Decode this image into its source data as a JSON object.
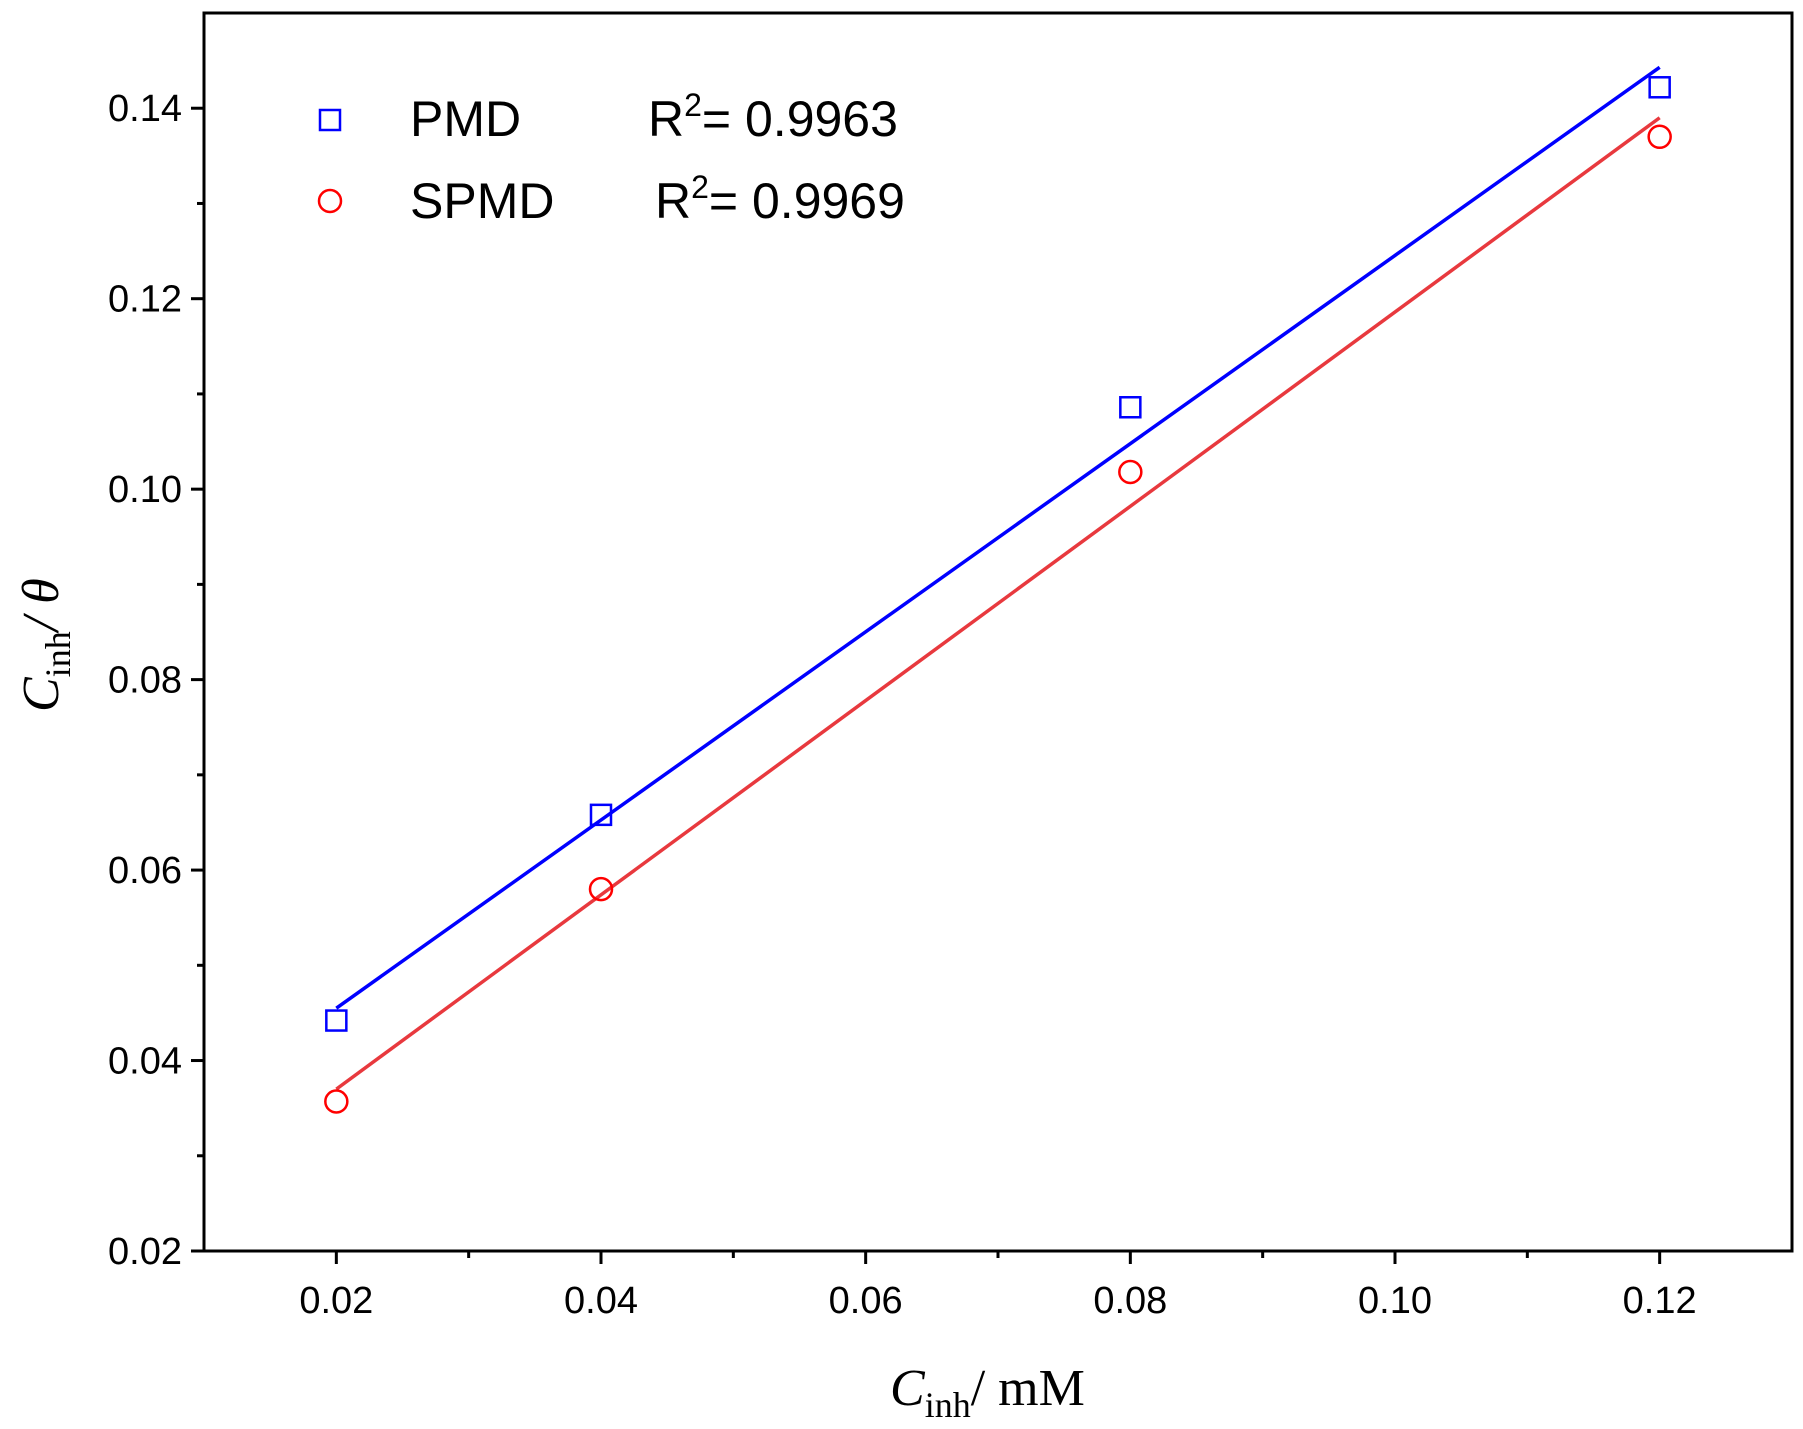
{
  "chart_data": {
    "type": "scatter",
    "xlabel": {
      "main": "C",
      "sub": "inh",
      "rest": "/ mM"
    },
    "ylabel": {
      "main": "C",
      "sub": "inh",
      "rest": "/ θ"
    },
    "xlim": [
      0.01,
      0.13
    ],
    "ylim": [
      0.02,
      0.15
    ],
    "x_ticks": [
      0.02,
      0.04,
      0.06,
      0.08,
      0.1,
      0.12
    ],
    "x_tick_labels": [
      "0.02",
      "0.04",
      "0.06",
      "0.08",
      "0.10",
      "0.12"
    ],
    "y_ticks": [
      0.02,
      0.04,
      0.06,
      0.08,
      0.1,
      0.12,
      0.14
    ],
    "y_tick_labels": [
      "0.02",
      "0.04",
      "0.06",
      "0.08",
      "0.10",
      "0.12",
      "0.14"
    ],
    "legend_position": "top-left",
    "series": [
      {
        "name": "PMD",
        "r2_prefix": "R",
        "r2_exp": "2",
        "r2_value": "= 0.9963",
        "marker": "square",
        "color": "#0000ff",
        "x": [
          0.02,
          0.04,
          0.08,
          0.12
        ],
        "y": [
          0.0442,
          0.0658,
          0.1086,
          0.1422
        ],
        "fit": {
          "x": [
            0.02,
            0.12
          ],
          "y": [
            0.0455,
            0.1443
          ]
        }
      },
      {
        "name": "SPMD",
        "r2_prefix": "R",
        "r2_exp": "2",
        "r2_value": "= 0.9969",
        "marker": "circle",
        "color": "#ff0000",
        "fit_color": "#e8393e",
        "x": [
          0.02,
          0.04,
          0.08,
          0.12
        ],
        "y": [
          0.0357,
          0.058,
          0.1018,
          0.137
        ],
        "fit": {
          "x": [
            0.02,
            0.12
          ],
          "y": [
            0.037,
            0.139
          ]
        }
      }
    ]
  }
}
